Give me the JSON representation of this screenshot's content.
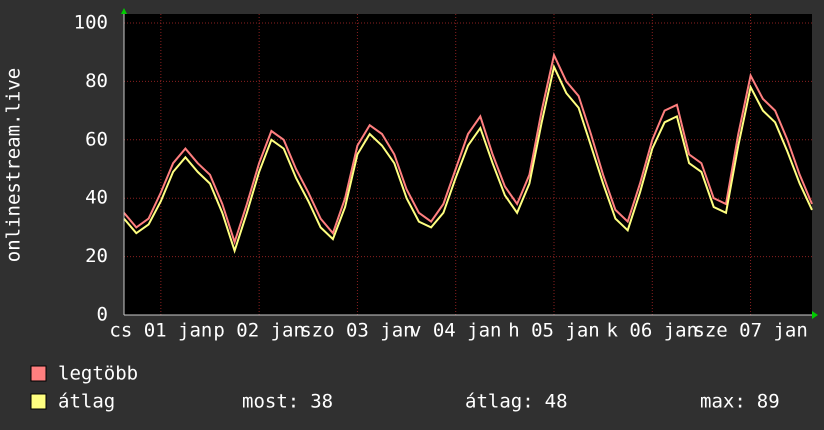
{
  "chart_data": {
    "type": "line",
    "ylabel": "onlinestream.live",
    "xlim": [
      0,
      168
    ],
    "ylim": [
      0,
      100
    ],
    "yticks": [
      0,
      20,
      40,
      60,
      80,
      100
    ],
    "xticks": [
      {
        "value": 9,
        "label": "cs 01 jan"
      },
      {
        "value": 33,
        "label": "p 02 jan"
      },
      {
        "value": 57,
        "label": "szo 03 jan"
      },
      {
        "value": 81,
        "label": "v 04 jan"
      },
      {
        "value": 105,
        "label": "h 05 jan"
      },
      {
        "value": 129,
        "label": "k 06 jan"
      },
      {
        "value": 153,
        "label": "sze 07 jan"
      }
    ],
    "grid": true,
    "x": [
      0,
      3,
      6,
      9,
      12,
      15,
      18,
      21,
      24,
      27,
      30,
      33,
      36,
      39,
      42,
      45,
      48,
      51,
      54,
      57,
      60,
      63,
      66,
      69,
      72,
      75,
      78,
      81,
      84,
      87,
      90,
      93,
      96,
      99,
      102,
      105,
      108,
      111,
      114,
      117,
      120,
      123,
      126,
      129,
      132,
      135,
      138,
      141,
      144,
      147,
      150,
      153,
      156,
      159,
      162,
      165,
      168
    ],
    "series": [
      {
        "name": "legtöbb",
        "color": "#ff7f7f",
        "values": [
          35,
          30,
          33,
          42,
          52,
          57,
          52,
          48,
          38,
          25,
          38,
          52,
          63,
          60,
          50,
          42,
          33,
          28,
          40,
          58,
          65,
          62,
          55,
          43,
          35,
          32,
          38,
          50,
          62,
          68,
          55,
          44,
          38,
          48,
          70,
          89,
          80,
          75,
          62,
          48,
          36,
          32,
          45,
          60,
          70,
          72,
          55,
          52,
          40,
          38,
          62,
          82,
          74,
          70,
          60,
          48,
          38
        ]
      },
      {
        "name": "átlag",
        "color": "#ffff80",
        "values": [
          33,
          28,
          31,
          39,
          49,
          54,
          49,
          45,
          35,
          22,
          35,
          49,
          60,
          57,
          47,
          39,
          30,
          26,
          37,
          55,
          62,
          58,
          52,
          40,
          32,
          30,
          35,
          47,
          58,
          64,
          52,
          41,
          35,
          45,
          66,
          85,
          76,
          71,
          58,
          45,
          33,
          29,
          42,
          57,
          66,
          68,
          52,
          49,
          37,
          35,
          58,
          78,
          70,
          66,
          56,
          45,
          36
        ]
      }
    ],
    "stats": [
      {
        "label": "most:",
        "value": 38
      },
      {
        "label": "átlag:",
        "value": 48
      },
      {
        "label": "max:",
        "value": 89
      }
    ]
  }
}
